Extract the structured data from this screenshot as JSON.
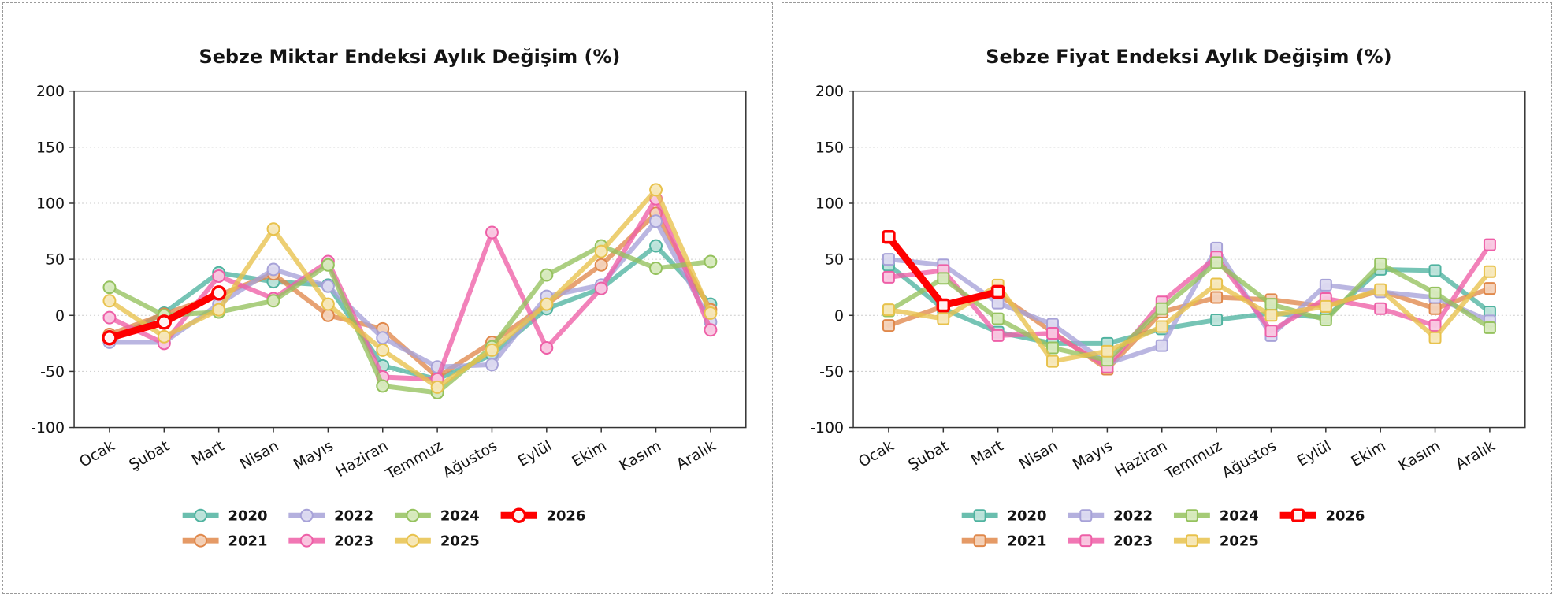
{
  "chart_data": [
    {
      "type": "line",
      "title": "Sebze Miktar Endeksi Aylık Değişim (%)",
      "marker": "circle",
      "categories": [
        "Ocak",
        "Şubat",
        "Mart",
        "Nisan",
        "Mayıs",
        "Haziran",
        "Temmuz",
        "Ağustos",
        "Eylül",
        "Ekim",
        "Kasım",
        "Aralık"
      ],
      "xlabel": "",
      "ylabel": "",
      "ylim": [
        -100,
        200
      ],
      "yticks": [
        -100,
        -50,
        0,
        50,
        100,
        150,
        200
      ],
      "grid": true,
      "legend_position": "bottom",
      "series": [
        {
          "name": "2020",
          "color": "#50b3a0",
          "marker_fill": "#bfe4db",
          "values": [
            -23,
            2,
            38,
            30,
            27,
            -45,
            -57,
            -35,
            6,
            24,
            62,
            10
          ]
        },
        {
          "name": "2021",
          "color": "#e0884b",
          "marker_fill": "#f3d2b9",
          "values": [
            -17,
            1,
            18,
            37,
            0,
            -12,
            -55,
            -24,
            10,
            45,
            91,
            5
          ]
        },
        {
          "name": "2022",
          "color": "#a7a2d8",
          "marker_fill": "#dcdaf0",
          "values": [
            -24,
            -24,
            10,
            41,
            26,
            -20,
            -46,
            -44,
            17,
            27,
            84,
            -6
          ]
        },
        {
          "name": "2023",
          "color": "#ee5fa7",
          "marker_fill": "#f9c8e1",
          "values": [
            -2,
            -25,
            35,
            15,
            48,
            -55,
            -57,
            74,
            -29,
            24,
            104,
            -13
          ]
        },
        {
          "name": "2024",
          "color": "#95c25e",
          "marker_fill": "#d8eabf",
          "values": [
            25,
            0,
            3,
            13,
            45,
            -63,
            -69,
            -28,
            36,
            62,
            42,
            48
          ]
        },
        {
          "name": "2025",
          "color": "#e8c24c",
          "marker_fill": "#f7e8ba",
          "values": [
            13,
            -19,
            5,
            77,
            10,
            -31,
            -64,
            -31,
            10,
            57,
            112,
            2
          ]
        },
        {
          "name": "2026",
          "color": "#fe0000",
          "marker_fill": "#ffffff",
          "values": [
            -20,
            -6,
            20,
            null,
            null,
            null,
            null,
            null,
            null,
            null,
            null,
            null
          ]
        }
      ]
    },
    {
      "type": "line",
      "title": "Sebze Fiyat Endeksi Aylık Değişim (%)",
      "marker": "square",
      "categories": [
        "Ocak",
        "Şubat",
        "Mart",
        "Nisan",
        "Mayıs",
        "Haziran",
        "Temmuz",
        "Ağustos",
        "Eylül",
        "Ekim",
        "Kasım",
        "Aralık"
      ],
      "xlabel": "",
      "ylabel": "",
      "ylim": [
        -100,
        200
      ],
      "yticks": [
        -100,
        -50,
        0,
        50,
        100,
        150,
        200
      ],
      "grid": true,
      "legend_position": "bottom",
      "series": [
        {
          "name": "2020",
          "color": "#50b3a0",
          "marker_fill": "#bfe4db",
          "values": [
            45,
            6,
            -15,
            -25,
            -25,
            -12,
            -4,
            2,
            -2,
            41,
            40,
            3
          ]
        },
        {
          "name": "2021",
          "color": "#e0884b",
          "marker_fill": "#f3d2b9",
          "values": [
            -9,
            8,
            19,
            -15,
            -48,
            3,
            16,
            14,
            8,
            22,
            6,
            24
          ]
        },
        {
          "name": "2022",
          "color": "#a7a2d8",
          "marker_fill": "#dcdaf0",
          "values": [
            50,
            45,
            11,
            -8,
            -43,
            -27,
            60,
            -18,
            27,
            21,
            16,
            -5
          ]
        },
        {
          "name": "2023",
          "color": "#ee5fa7",
          "marker_fill": "#f9c8e1",
          "values": [
            34,
            40,
            -18,
            -16,
            -46,
            12,
            52,
            -14,
            15,
            6,
            -9,
            63
          ]
        },
        {
          "name": "2024",
          "color": "#95c25e",
          "marker_fill": "#d8eabf",
          "values": [
            4,
            33,
            -3,
            -29,
            -40,
            6,
            47,
            10,
            -4,
            46,
            20,
            -11
          ]
        },
        {
          "name": "2025",
          "color": "#e8c24c",
          "marker_fill": "#f7e8ba",
          "values": [
            5,
            -3,
            27,
            -41,
            -32,
            -10,
            28,
            0,
            8,
            23,
            -20,
            39
          ]
        },
        {
          "name": "2026",
          "color": "#fe0000",
          "marker_fill": "#ffffff",
          "values": [
            70,
            9,
            21,
            null,
            null,
            null,
            null,
            null,
            null,
            null,
            null,
            null
          ]
        }
      ]
    }
  ]
}
